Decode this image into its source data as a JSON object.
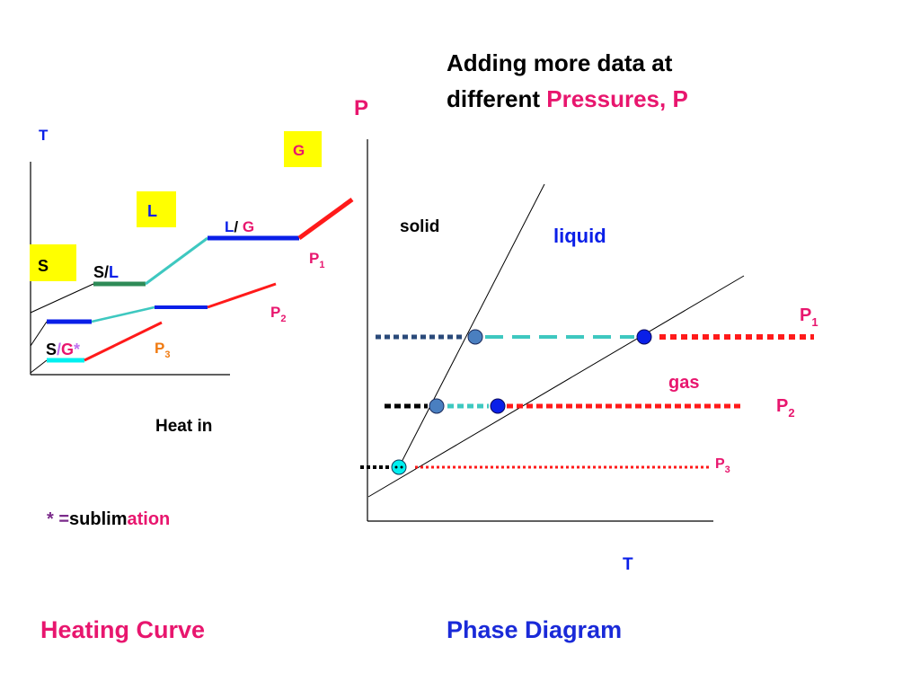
{
  "title": {
    "line1": "Adding more data at",
    "line2_prefix": "different ",
    "line2_highlight": "Pressures, P"
  },
  "heating_curve": {
    "caption": "Heating Curve",
    "axis_t": "T",
    "axis_heat": "Heat in",
    "box_s": "S",
    "box_l": "L",
    "box_g": "G",
    "label_sl_s": "S/",
    "label_sl_l": "L",
    "label_lg_l": "L",
    "label_lg_slash": "/ ",
    "label_lg_g": "G",
    "label_sg_s": "S",
    "label_sg_slash": "/",
    "label_sg_g": "G",
    "label_sg_star": "*",
    "p1": "P",
    "p1_sub": "1",
    "p2": "P",
    "p2_sub": "2",
    "p3": "P",
    "p3_sub": "3",
    "footnote_star": "* =",
    "footnote_word_a": "sublim",
    "footnote_word_b": "ation"
  },
  "phase_diagram": {
    "caption": "Phase Diagram",
    "axis_p": "P",
    "axis_t": "T",
    "region_solid": "solid",
    "region_liquid": "liquid",
    "region_gas": "gas",
    "p1": "P",
    "p1_sub": "1",
    "p2": "P",
    "p2_sub": "2",
    "p3": "P",
    "p3_sub": "3"
  },
  "colors": {
    "red": "#ff1a1a",
    "blue": "#0a1fe8",
    "dark_blue": "#1a2ad8",
    "magenta": "#e8166e",
    "turquoise": "#3ec8c0",
    "green": "#2e8b57",
    "yellow": "#ffff00",
    "cyan": "#00f0f0",
    "orange": "#f07a10",
    "violet": "#c070f0",
    "steel": "#4a7fc0",
    "navy_dots": "#2a4a7a",
    "purple_text": "#7a2a8a"
  }
}
